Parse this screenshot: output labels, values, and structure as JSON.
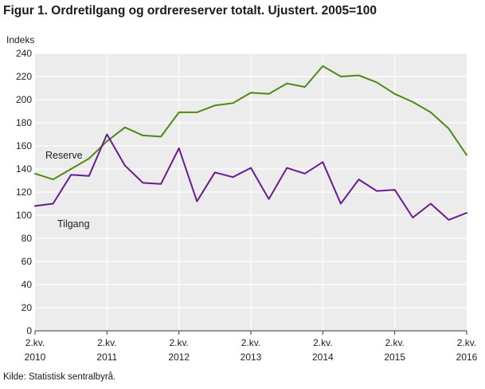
{
  "title": "Figur 1. Ordretilgang og ordrereserver totalt. Ujustert. 2005=100",
  "source": "Kilde: Statistisk sentralbyrå.",
  "chart_data": {
    "type": "line",
    "title": "Figur 1. Ordretilgang og ordrereserver totalt. Ujustert. 2005=100",
    "ylabel": "Indeks",
    "xlabel": "",
    "ylim": [
      0,
      240
    ],
    "yticks": [
      0,
      20,
      40,
      60,
      80,
      100,
      120,
      140,
      160,
      180,
      200,
      220,
      240
    ],
    "grid": true,
    "x": [
      "2.kv. 2010",
      "3.kv. 2010",
      "4.kv. 2010",
      "1.kv. 2011",
      "2.kv. 2011",
      "3.kv. 2011",
      "4.kv. 2011",
      "1.kv. 2012",
      "2.kv. 2012",
      "3.kv. 2012",
      "4.kv. 2012",
      "1.kv. 2013",
      "2.kv. 2013",
      "3.kv. 2013",
      "4.kv. 2013",
      "1.kv. 2014",
      "2.kv. 2014",
      "3.kv. 2014",
      "4.kv. 2014",
      "1.kv. 2015",
      "2.kv. 2015",
      "3.kv. 2015",
      "4.kv. 2015",
      "1.kv. 2016",
      "2.kv. 2016"
    ],
    "xtick_labels": [
      {
        "line1": "2.kv.",
        "line2": "2010",
        "index": 0
      },
      {
        "line1": "2.kv.",
        "line2": "2011",
        "index": 4
      },
      {
        "line1": "2.kv.",
        "line2": "2012",
        "index": 8
      },
      {
        "line1": "2.kv.",
        "line2": "2013",
        "index": 12
      },
      {
        "line1": "2.kv.",
        "line2": "2014",
        "index": 16
      },
      {
        "line1": "2.kv.",
        "line2": "2015",
        "index": 20
      },
      {
        "line1": "2.kv.",
        "line2": "2016",
        "index": 24
      }
    ],
    "series": [
      {
        "name": "Reserve",
        "color": "#4e8a13",
        "values": [
          136,
          131,
          140,
          149,
          164,
          176,
          169,
          168,
          189,
          189,
          195,
          197,
          206,
          205,
          214,
          211,
          229,
          220,
          221,
          215,
          205,
          198,
          189,
          175,
          152
        ]
      },
      {
        "name": "Tilgang",
        "color": "#6b1b91",
        "values": [
          108,
          110,
          135,
          134,
          170,
          143,
          128,
          127,
          158,
          112,
          137,
          133,
          141,
          114,
          141,
          136,
          146,
          110,
          131,
          121,
          122,
          98,
          110,
          96,
          102
        ]
      }
    ]
  }
}
